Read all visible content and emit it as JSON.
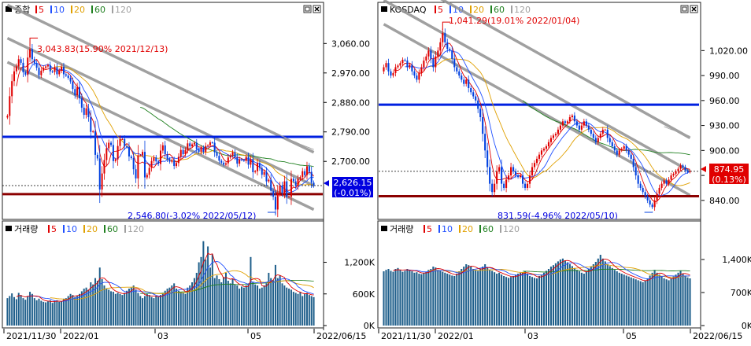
{
  "colors": {
    "up": "#e00000",
    "down": "#0040e0",
    "ma5": "#e00000",
    "ma10": "#2050ff",
    "ma20": "#e0a000",
    "ma60": "#208020",
    "ma120": "#a0a0a0",
    "volume": "#1f5f8b",
    "support": "#8b0000",
    "resistance": "#0020e0",
    "channel": "#909090",
    "label_bg": "#0000e0",
    "label_bg_alt": "#e00000"
  },
  "legend_ma": [
    "5",
    "10",
    "20",
    "60",
    "120"
  ],
  "panels": [
    {
      "id": "kospi",
      "price_title": "종합",
      "volume_title": "거래량",
      "price_axis": [
        "3,060.00",
        "2,970.00",
        "2,880.00",
        "2,790.00",
        "2,700.00"
      ],
      "volume_axis": [
        "1,200K",
        "600K",
        "0K"
      ],
      "x_axis": [
        "2021/11/30",
        "2022/01",
        "03",
        "05",
        "2022/06/15"
      ],
      "high_annotation": "3,043.83(15.90% 2021/12/13)",
      "low_annotation": "2,546.80(-3.02% 2022/05/12)",
      "current_value": "2,626.15",
      "current_change": "(-0.01%)"
    },
    {
      "id": "kosdaq",
      "price_title": "KOSDAQ",
      "volume_title": "거래량",
      "price_axis": [
        "1,020.00",
        "990.00",
        "960.00",
        "930.00",
        "900.00",
        "870.00",
        "840.00"
      ],
      "volume_axis": [
        "1,400K",
        "700K",
        "0K"
      ],
      "x_axis": [
        "2021/11/30",
        "2022/01",
        "03",
        "05",
        "2022/06/15"
      ],
      "high_annotation": "1,041.29(19.01% 2022/01/04)",
      "low_annotation": "831.59(-4.96% 2022/05/10)",
      "current_value": "874.95",
      "current_change": "(0.13%)"
    }
  ],
  "chart_data": [
    {
      "type": "candlestick",
      "name": "종합",
      "y_ticks": [
        3060,
        2970,
        2880,
        2790,
        2700
      ],
      "ylim": [
        2530,
        3140
      ],
      "volume_ticks": [
        1200000,
        600000,
        0
      ],
      "volume_ylim": [
        0,
        1700000
      ],
      "x_ticks": [
        "2021/11/30",
        "2022/01",
        "03",
        "05",
        "2022/06/15"
      ],
      "close": [
        2839,
        2899,
        2945,
        2975,
        2990,
        3012,
        3001,
        2972,
        2965,
        3017,
        3043,
        3012,
        3000,
        2986,
        2963,
        2977,
        2986,
        2990,
        2994,
        2975,
        2973,
        2988,
        2966,
        2977,
        2989,
        2966,
        2962,
        2955,
        2944,
        2921,
        2902,
        2927,
        2893,
        2864,
        2842,
        2862,
        2835,
        2790,
        2792,
        2720,
        2709,
        2614,
        2663,
        2704,
        2740,
        2757,
        2750,
        2701,
        2706,
        2747,
        2768,
        2768,
        2746,
        2744,
        2715,
        2710,
        2676,
        2648,
        2719,
        2719,
        2729,
        2651,
        2659,
        2680,
        2701,
        2712,
        2700,
        2692,
        2733,
        2749,
        2722,
        2707,
        2699,
        2704,
        2686,
        2695,
        2714,
        2735,
        2722,
        2735,
        2755,
        2746,
        2752,
        2757,
        2737,
        2729,
        2741,
        2729,
        2747,
        2749,
        2758,
        2757,
        2728,
        2717,
        2702,
        2696,
        2690,
        2694,
        2712,
        2718,
        2728,
        2713,
        2693,
        2706,
        2704,
        2702,
        2714,
        2690,
        2707,
        2667,
        2670,
        2695,
        2680,
        2659,
        2668,
        2639,
        2644,
        2610,
        2592,
        2553,
        2604,
        2626,
        2604,
        2639,
        2592,
        2592,
        2647,
        2639,
        2625,
        2647,
        2652,
        2670,
        2658,
        2685,
        2668,
        2635,
        2626
      ],
      "volume": [
        520000,
        560000,
        610000,
        540000,
        500000,
        620000,
        580000,
        520000,
        490000,
        560000,
        640000,
        600000,
        520000,
        480000,
        510000,
        470000,
        450000,
        440000,
        460000,
        480000,
        430000,
        470000,
        480000,
        450000,
        460000,
        510000,
        520000,
        560000,
        600000,
        580000,
        540000,
        560000,
        600000,
        650000,
        700000,
        720000,
        680000,
        820000,
        780000,
        900000,
        850000,
        1100000,
        880000,
        760000,
        700000,
        680000,
        650000,
        640000,
        600000,
        620000,
        600000,
        580000,
        620000,
        660000,
        700000,
        720000,
        760000,
        680000,
        620000,
        560000,
        520000,
        560000,
        600000,
        580000,
        540000,
        520000,
        560000,
        540000,
        580000,
        620000,
        660000,
        700000,
        720000,
        760000,
        800000,
        700000,
        660000,
        640000,
        620000,
        600000,
        720000,
        760000,
        820000,
        900000,
        1000000,
        1200000,
        1300000,
        1600000,
        1250000,
        1500000,
        1100000,
        1350000,
        900000,
        950000,
        880000,
        820000,
        920000,
        1000000,
        850000,
        800000,
        880000,
        780000,
        760000,
        700000,
        740000,
        720000,
        760000,
        800000,
        1300000,
        820000,
        780000,
        760000,
        700000,
        720000,
        760000,
        800000,
        1000000,
        900000,
        860000,
        1150000,
        900000,
        950000,
        800000,
        760000,
        720000,
        700000,
        680000,
        640000,
        620000,
        600000,
        640000,
        560000,
        600000,
        620000,
        580000,
        560000,
        540000
      ],
      "high_annotation": "3,043.83(15.90% 2021/12/13)",
      "low_annotation": "2,546.80(-3.02% 2022/05/12)",
      "last_value": 2626.15,
      "last_change_pct": -0.01
    },
    {
      "type": "candlestick",
      "name": "KOSDAQ",
      "y_ticks": [
        1020,
        990,
        960,
        930,
        900,
        870,
        840
      ],
      "ylim": [
        820,
        1060
      ],
      "volume_ticks": [
        1400000,
        700000,
        0
      ],
      "volume_ylim": [
        0,
        1900000
      ],
      "x_ticks": [
        "2021/11/30",
        "2022/01",
        "03",
        "05",
        "2022/06/15"
      ],
      "close": [
        1000,
        1005,
        995,
        990,
        993,
        1000,
        1002,
        1005,
        1009,
        1008,
        1000,
        1003,
        995,
        990,
        985,
        993,
        1000,
        1008,
        1013,
        1020,
        1010,
        1000,
        1013,
        1020,
        1030,
        1041,
        1030,
        1022,
        1020,
        1010,
        1000,
        995,
        990,
        985,
        980,
        985,
        975,
        970,
        965,
        960,
        950,
        940,
        920,
        900,
        880,
        860,
        850,
        860,
        875,
        880,
        860,
        855,
        865,
        870,
        880,
        875,
        870,
        868,
        870,
        860,
        855,
        860,
        870,
        880,
        885,
        890,
        895,
        900,
        902,
        905,
        910,
        915,
        918,
        920,
        925,
        930,
        935,
        933,
        935,
        940,
        942,
        935,
        930,
        925,
        930,
        935,
        930,
        925,
        920,
        915,
        910,
        915,
        920,
        925,
        925,
        915,
        910,
        905,
        900,
        895,
        900,
        902,
        905,
        900,
        895,
        890,
        880,
        870,
        860,
        855,
        850,
        845,
        840,
        835,
        832,
        840,
        848,
        855,
        860,
        864,
        860,
        865,
        870,
        872,
        875,
        878,
        882,
        880,
        876,
        874,
        875
      ],
      "volume": [
        1150000,
        1180000,
        1200000,
        1160000,
        1140000,
        1200000,
        1220000,
        1180000,
        1140000,
        1160000,
        1200000,
        1180000,
        1150000,
        1120000,
        1130000,
        1100000,
        1090000,
        1120000,
        1140000,
        1180000,
        1200000,
        1250000,
        1230000,
        1180000,
        1160000,
        1140000,
        1120000,
        1100000,
        1080000,
        1060000,
        1050000,
        1100000,
        1150000,
        1200000,
        1250000,
        1300000,
        1280000,
        1250000,
        1200000,
        1180000,
        1160000,
        1200000,
        1250000,
        1300000,
        1230000,
        1180000,
        1160000,
        1130000,
        1100000,
        1120000,
        1080000,
        1050000,
        1030000,
        1010000,
        1030000,
        1050000,
        1080000,
        1100000,
        1120000,
        1130000,
        1150000,
        1100000,
        1050000,
        1030000,
        1010000,
        1000000,
        1050000,
        1080000,
        1120000,
        1160000,
        1200000,
        1250000,
        1280000,
        1320000,
        1360000,
        1400000,
        1420000,
        1380000,
        1340000,
        1300000,
        1260000,
        1220000,
        1180000,
        1150000,
        1120000,
        1100000,
        1150000,
        1200000,
        1250000,
        1300000,
        1350000,
        1420000,
        1500000,
        1420000,
        1360000,
        1300000,
        1260000,
        1220000,
        1180000,
        1150000,
        1120000,
        1100000,
        1080000,
        1060000,
        1040000,
        1020000,
        1000000,
        980000,
        960000,
        940000,
        920000,
        960000,
        1000000,
        1060000,
        1120000,
        1180000,
        1120000,
        1080000,
        1040000,
        1000000,
        980000,
        960000,
        1000000,
        1040000,
        1080000,
        1120000,
        1160000,
        1100000,
        1060000,
        1020000,
        1000000
      ],
      "high_annotation": "1,041.29(19.01% 2022/01/04)",
      "low_annotation": "831.59(-4.96% 2022/05/10)",
      "last_value": 874.95,
      "last_change_pct": 0.13
    }
  ]
}
